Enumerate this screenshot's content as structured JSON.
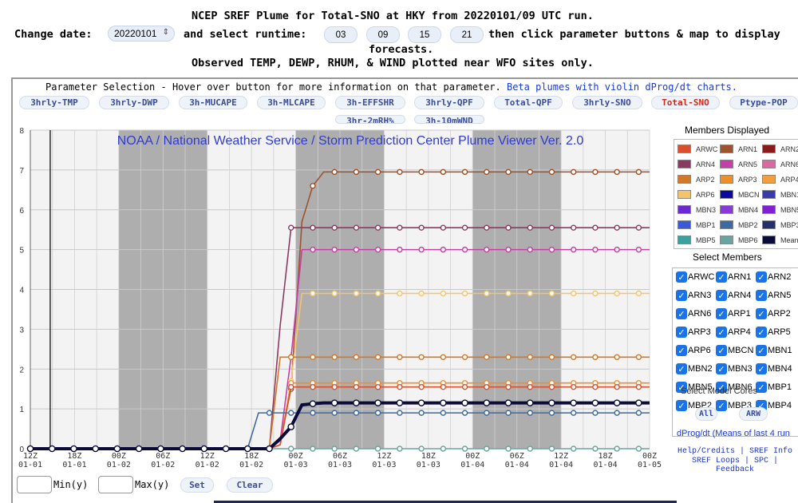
{
  "header": {
    "line1": "NCEP SREF Plume for Total-SNO at HKY from 20220101/09 UTC run.",
    "change_date_label": "Change date:",
    "date_value": "20220101",
    "select_runtime_label": "and select runtime:",
    "runtimes": [
      "03",
      "09",
      "15",
      "21"
    ],
    "line2_rest": "then click parameter buttons & map to display",
    "line3": "forecasts.",
    "line4": "Observed TEMP, DEWP, RHUM, & WIND plotted near WFO sites only."
  },
  "parameter_selection": {
    "title": "Parameter Selection - Hover over button for more information on that parameter.",
    "beta_link": "Beta plumes with violin dProg/dt charts.",
    "buttons": [
      "3hrly-TMP",
      "3hrly-DWP",
      "3h-MUCAPE",
      "3h-MLCAPE",
      "3h-EFFSHR",
      "3hrly-QPF",
      "Total-QPF",
      "3hrly-SNO",
      "Total-SNO",
      "Ptype-POP"
    ],
    "buttons_row2": [
      "3hr-2mRH%",
      "3h-10mWND"
    ],
    "active": "Total-SNO"
  },
  "chart_data": {
    "type": "line",
    "title": "NOAA / National Weather Service / Storm Prediction Center Plume Viewer Ver. 2.0",
    "ylim": [
      0,
      8
    ],
    "yticks": [
      "0",
      "1",
      "2",
      "3",
      "4",
      "5",
      "6",
      "7",
      "8"
    ],
    "x_ticks": [
      [
        "12Z",
        "01-01"
      ],
      [
        "18Z",
        "01-01"
      ],
      [
        "00Z",
        "01-02"
      ],
      [
        "06Z",
        "01-02"
      ],
      [
        "12Z",
        "01-02"
      ],
      [
        "18Z",
        "01-02"
      ],
      [
        "00Z",
        "01-03"
      ],
      [
        "06Z",
        "01-03"
      ],
      [
        "12Z",
        "01-03"
      ],
      [
        "18Z",
        "01-03"
      ],
      [
        "00Z",
        "01-04"
      ],
      [
        "06Z",
        "01-04"
      ],
      [
        "12Z",
        "01-04"
      ],
      [
        "18Z",
        "01-04"
      ],
      [
        "00Z",
        "01-05"
      ]
    ],
    "grid": true,
    "series": [
      {
        "name": "ARN1",
        "color": "#a0522d",
        "values": [
          0,
          0,
          0,
          0,
          0,
          0,
          0,
          0,
          0,
          0,
          0,
          0,
          0,
          0,
          0,
          0,
          0,
          0,
          0,
          0,
          0,
          0,
          0,
          0.25,
          1.5,
          5.7,
          6.6,
          6.95,
          6.95,
          6.95,
          6.95,
          6.95,
          6.95,
          6.95,
          6.95,
          6.95,
          6.95,
          6.95,
          6.95,
          6.95,
          6.95,
          6.95,
          6.95,
          6.95,
          6.95,
          6.95,
          6.95,
          6.95,
          6.95,
          6.95,
          6.95,
          6.95,
          6.95,
          6.95,
          6.95,
          6.95,
          6.95,
          6.95
        ]
      },
      {
        "name": "ARN4",
        "color": "#8b3a62",
        "values": [
          0,
          0,
          0,
          0,
          0,
          0,
          0,
          0,
          0,
          0,
          0,
          0,
          0,
          0,
          0,
          0,
          0,
          0,
          0,
          0,
          0,
          0,
          0,
          3.1,
          5.55,
          5.55,
          5.55,
          5.55,
          5.55,
          5.55,
          5.55,
          5.55,
          5.55,
          5.55,
          5.55,
          5.55,
          5.55,
          5.55,
          5.55,
          5.55,
          5.55,
          5.55,
          5.55,
          5.55,
          5.55,
          5.55,
          5.55,
          5.55,
          5.55,
          5.55,
          5.55,
          5.55,
          5.55,
          5.55,
          5.55,
          5.55,
          5.55,
          5.55
        ]
      },
      {
        "name": "ARN5",
        "color": "#c43fa8",
        "values": [
          0,
          0,
          0,
          0,
          0,
          0,
          0,
          0,
          0,
          0,
          0,
          0,
          0,
          0,
          0,
          0,
          0,
          0,
          0,
          0,
          0,
          0,
          0,
          0.2,
          2.3,
          5.0,
          5.0,
          5.0,
          5.0,
          5.0,
          5.0,
          5.0,
          5.0,
          5.0,
          5.0,
          5.0,
          5.0,
          5.0,
          5.0,
          5.0,
          5.0,
          5.0,
          5.0,
          5.0,
          5.0,
          5.0,
          5.0,
          5.0,
          5.0,
          5.0,
          5.0,
          5.0,
          5.0,
          5.0,
          5.0,
          5.0,
          5.0,
          5.0
        ]
      },
      {
        "name": "ARP6",
        "color": "#f5c36b",
        "values": [
          0,
          0,
          0,
          0,
          0,
          0,
          0,
          0,
          0,
          0,
          0,
          0,
          0,
          0,
          0,
          0,
          0,
          0,
          0,
          0,
          0,
          0,
          0,
          0.1,
          1.7,
          3.9,
          3.9,
          3.9,
          3.9,
          3.9,
          3.9,
          3.9,
          3.9,
          3.9,
          3.9,
          3.9,
          3.9,
          3.9,
          3.9,
          3.9,
          3.9,
          3.9,
          3.9,
          3.9,
          3.9,
          3.9,
          3.9,
          3.9,
          3.9,
          3.9,
          3.9,
          3.9,
          3.9,
          3.9,
          3.9,
          3.9,
          3.9,
          3.9
        ]
      },
      {
        "name": "ARP2",
        "color": "#d2782b",
        "values": [
          0,
          0,
          0,
          0,
          0,
          0,
          0,
          0,
          0,
          0,
          0,
          0,
          0,
          0,
          0,
          0,
          0,
          0,
          0,
          0,
          0,
          0,
          0,
          2.3,
          2.3,
          2.3,
          2.3,
          2.3,
          2.3,
          2.3,
          2.3,
          2.3,
          2.3,
          2.3,
          2.3,
          2.3,
          2.3,
          2.3,
          2.3,
          2.3,
          2.3,
          2.3,
          2.3,
          2.3,
          2.3,
          2.3,
          2.3,
          2.3,
          2.3,
          2.3,
          2.3,
          2.3,
          2.3,
          2.3,
          2.3,
          2.3,
          2.3,
          2.3
        ]
      },
      {
        "name": "ARP3",
        "color": "#ee8f2e",
        "values": [
          0,
          0,
          0,
          0,
          0,
          0,
          0,
          0,
          0,
          0,
          0,
          0,
          0,
          0,
          0,
          0,
          0,
          0,
          0,
          0,
          0,
          0,
          0,
          0.1,
          1.65,
          1.65,
          1.65,
          1.65,
          1.65,
          1.65,
          1.65,
          1.65,
          1.65,
          1.65,
          1.65,
          1.65,
          1.65,
          1.65,
          1.65,
          1.65,
          1.65,
          1.65,
          1.65,
          1.65,
          1.65,
          1.65,
          1.65,
          1.65,
          1.65,
          1.65,
          1.65,
          1.65,
          1.65,
          1.65,
          1.65,
          1.65,
          1.65,
          1.65
        ]
      },
      {
        "name": "ARWC",
        "color": "#d9502d",
        "values": [
          0,
          0,
          0,
          0,
          0,
          0,
          0,
          0,
          0,
          0,
          0,
          0,
          0,
          0,
          0,
          0,
          0,
          0,
          0,
          0,
          0,
          0,
          0,
          0.1,
          1.55,
          1.55,
          1.55,
          1.55,
          1.55,
          1.55,
          1.55,
          1.55,
          1.55,
          1.55,
          1.55,
          1.55,
          1.55,
          1.55,
          1.55,
          1.55,
          1.55,
          1.55,
          1.55,
          1.55,
          1.55,
          1.55,
          1.55,
          1.55,
          1.55,
          1.55,
          1.55,
          1.55,
          1.55,
          1.55,
          1.55,
          1.55,
          1.55,
          1.55
        ]
      },
      {
        "name": "MBP2",
        "color": "#3d6aa0",
        "values": [
          0,
          0,
          0,
          0,
          0,
          0,
          0,
          0,
          0,
          0,
          0,
          0,
          0,
          0,
          0,
          0,
          0,
          0,
          0,
          0,
          0,
          0.9,
          0.9,
          0.9,
          0.9,
          0.9,
          0.9,
          0.9,
          0.9,
          0.9,
          0.9,
          0.9,
          0.9,
          0.9,
          0.9,
          0.9,
          0.9,
          0.9,
          0.9,
          0.9,
          0.9,
          0.9,
          0.9,
          0.9,
          0.9,
          0.9,
          0.9,
          0.9,
          0.9,
          0.9,
          0.9,
          0.9,
          0.9,
          0.9,
          0.9,
          0.9,
          0.9,
          0.9
        ]
      },
      {
        "name": "MBP6",
        "color": "#6aa3a0",
        "values": [
          0,
          0,
          0,
          0,
          0,
          0,
          0,
          0,
          0,
          0,
          0,
          0,
          0,
          0,
          0,
          0,
          0,
          0,
          0,
          0,
          0,
          0,
          0,
          0,
          0,
          0,
          0,
          0,
          0,
          0,
          0,
          0,
          0,
          0,
          0,
          0,
          0,
          0,
          0,
          0,
          0,
          0,
          0,
          0,
          0,
          0,
          0,
          0,
          0,
          0,
          0,
          0,
          0,
          0,
          0,
          0,
          0,
          0
        ]
      },
      {
        "name": "Mean",
        "color": "#0b0b3a",
        "values": [
          0,
          0,
          0,
          0,
          0,
          0,
          0,
          0,
          0,
          0,
          0,
          0,
          0,
          0,
          0,
          0,
          0,
          0,
          0,
          0,
          0,
          0,
          0,
          0.25,
          0.55,
          1.1,
          1.13,
          1.15,
          1.15,
          1.15,
          1.15,
          1.15,
          1.15,
          1.15,
          1.15,
          1.15,
          1.15,
          1.15,
          1.15,
          1.15,
          1.15,
          1.15,
          1.15,
          1.15,
          1.15,
          1.15,
          1.15,
          1.15,
          1.15,
          1.15,
          1.15,
          1.15,
          1.15,
          1.15,
          1.15,
          1.15,
          1.15,
          1.15
        ]
      }
    ]
  },
  "legend": {
    "members_title": "Members Displayed",
    "members": [
      {
        "name": "ARWC",
        "color": "#d9502d"
      },
      {
        "name": "ARN1",
        "color": "#a0522d"
      },
      {
        "name": "ARN2",
        "color": "#8b1a1a"
      },
      {
        "name": "ARN4",
        "color": "#8b3a62"
      },
      {
        "name": "ARN5",
        "color": "#c43fa8"
      },
      {
        "name": "ARN6",
        "color": "#d86aa0"
      },
      {
        "name": "ARP2",
        "color": "#d2782b"
      },
      {
        "name": "ARP3",
        "color": "#ee8f2e"
      },
      {
        "name": "ARP4",
        "color": "#f0a040"
      },
      {
        "name": "ARP6",
        "color": "#f5c36b"
      },
      {
        "name": "MBCN",
        "color": "#0a0aa0"
      },
      {
        "name": "MBN1",
        "color": "#3a3aa8"
      },
      {
        "name": "MBN3",
        "color": "#6a2ad0"
      },
      {
        "name": "MBN4",
        "color": "#8a3ad8"
      },
      {
        "name": "MBN5",
        "color": "#8020d0"
      },
      {
        "name": "MBP1",
        "color": "#3a5ad8"
      },
      {
        "name": "MBP2",
        "color": "#3d6aa0"
      },
      {
        "name": "MBP3",
        "color": "#23306a"
      },
      {
        "name": "MBP5",
        "color": "#3aa0a0"
      },
      {
        "name": "MBP6",
        "color": "#6aa3a0"
      },
      {
        "name": "Mean",
        "color": "#0b0b3a"
      }
    ],
    "select_title": "Select Members",
    "select_items": [
      [
        "ARWC",
        "ARN1",
        "ARN2"
      ],
      [
        "ARN3",
        "ARN4",
        "ARN5"
      ],
      [
        "ARN6",
        "ARP1",
        "ARP2"
      ],
      [
        "ARP3",
        "ARP4",
        "ARP5"
      ],
      [
        "ARP6",
        "MBCN",
        "MBN1"
      ],
      [
        "MBN2",
        "MBN3",
        "MBN4"
      ],
      [
        "MBN5",
        "MBN6",
        "MBP1"
      ],
      [
        "MBP2",
        "MBP3",
        "MBP4"
      ]
    ],
    "select_model_cores": "Select Model Cores",
    "all_label": "All",
    "arw_label": "ARW",
    "dprog": "dProg/dt (Means of last 4 run"
  },
  "bottom": {
    "min_label": "Min(y)",
    "max_label": "Max(y)",
    "set_label": "Set",
    "clear_label": "Clear"
  },
  "help": {
    "help_credits": "Help/Credits",
    "sref_info": "SREF Info",
    "sref_loops": "SREF Loops",
    "spc": "SPC",
    "feedback": "Feedback"
  }
}
